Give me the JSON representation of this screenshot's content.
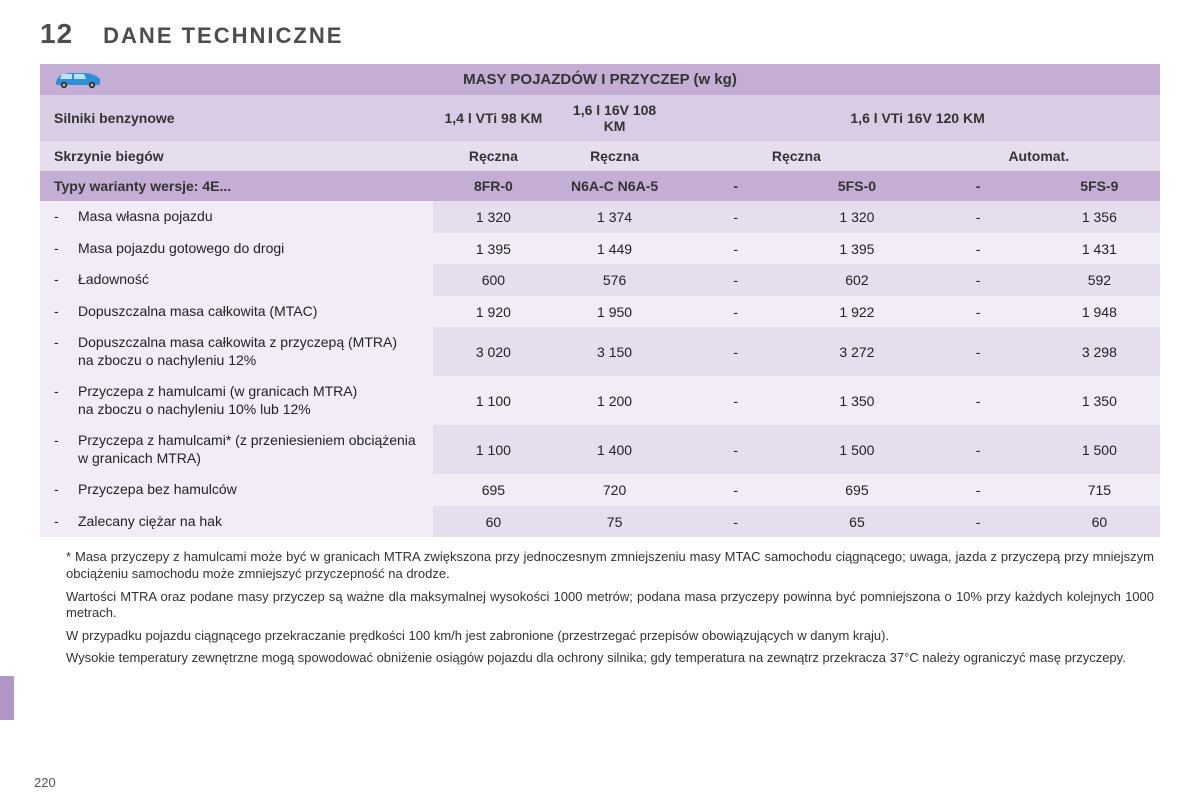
{
  "chapter": "12",
  "title": "DANE TECHNICZNE",
  "page_number": "220",
  "table": {
    "banner": "MASY POJAZDÓW I PRZYCZEP (w kg)",
    "engines_label": "Silniki benzynowe",
    "engines": {
      "e1": "1,4 l VTi 98 KM",
      "e2": "1,6 l 16V 108 KM",
      "e3": "1,6 l VTi 16V 120 KM"
    },
    "gearbox_label": "Skrzynie biegów",
    "gearboxes": {
      "g1": "Ręczna",
      "g2": "Ręczna",
      "g3": "Ręczna",
      "g4": "Automat."
    },
    "variants_label": "Typy warianty wersje: 4E...",
    "variants": {
      "v1": "8FR-0",
      "v2": "N6A-C N6A-5",
      "v3": "-",
      "v4": "5FS-0",
      "v5": "-",
      "v6": "5FS-9"
    },
    "rows": [
      {
        "label": "Masa własna pojazdu",
        "c": [
          "1 320",
          "1 374",
          "-",
          "1 320",
          "-",
          "1 356"
        ]
      },
      {
        "label": "Masa pojazdu gotowego do drogi",
        "c": [
          "1 395",
          "1 449",
          "-",
          "1 395",
          "-",
          "1 431"
        ]
      },
      {
        "label": "Ładowność",
        "c": [
          "600",
          "576",
          "-",
          "602",
          "-",
          "592"
        ]
      },
      {
        "label": "Dopuszczalna masa całkowita (MTAC)",
        "c": [
          "1 920",
          "1 950",
          "-",
          "1 922",
          "-",
          "1 948"
        ]
      },
      {
        "label": "Dopuszczalna masa całkowita z przyczepą (MTRA)",
        "sub": "na zboczu o nachyleniu 12%",
        "c": [
          "3 020",
          "3 150",
          "-",
          "3 272",
          "-",
          "3 298"
        ]
      },
      {
        "label": "Przyczepa z hamulcami (w granicach MTRA)",
        "sub": "na zboczu o nachyleniu 10% lub 12%",
        "c": [
          "1 100",
          "1 200",
          "-",
          "1 350",
          "-",
          "1 350"
        ]
      },
      {
        "label": "Przyczepa z hamulcami* (z przeniesieniem obciążenia w granicach MTRA)",
        "c": [
          "1 100",
          "1 400",
          "-",
          "1 500",
          "-",
          "1 500"
        ]
      },
      {
        "label": "Przyczepa bez hamulców",
        "c": [
          "695",
          "720",
          "-",
          "695",
          "-",
          "715"
        ]
      },
      {
        "label": "Zalecany ciężar na hak",
        "c": [
          "60",
          "75",
          "-",
          "65",
          "-",
          "60"
        ]
      }
    ]
  },
  "footnotes": {
    "f1": "* Masa przyczepy z hamulcami może być w granicach MTRA zwiększona przy jednoczesnym zmniejszeniu masy MTAC samochodu ciągnącego; uwaga, jazda z przyczepą przy mniejszym obciążeniu samochodu może zmniejszyć przyczepność na drodze.",
    "f2": "Wartości MTRA oraz podane masy przyczep są ważne dla maksymalnej wysokości 1000 metrów; podana masa przyczepy powinna być pomniejszona o 10% przy każdych kolejnych 1000 metrach.",
    "f3": "W przypadku pojazdu ciągnącego przekraczanie prędkości 100 km/h jest zabronione (przestrzegać przepisów obowiązujących w danym kraju).",
    "f4": "Wysokie temperatury zewnętrzne mogą spowodować obniżenie osiągów pojazdu dla ochrony silnika; gdy temperatura na zewnątrz przekracza 37°C należy ograniczyć masę przyczepy."
  },
  "style": {
    "colors": {
      "band": "#c4aed4",
      "hdr1": "#d9cce5",
      "hdr2": "#e6ddef",
      "data_bg": "#f2ecf6",
      "accent": "#b196c8"
    },
    "fonts": {
      "title_pt": 22,
      "body_pt": 14,
      "footnote_pt": 13
    }
  }
}
